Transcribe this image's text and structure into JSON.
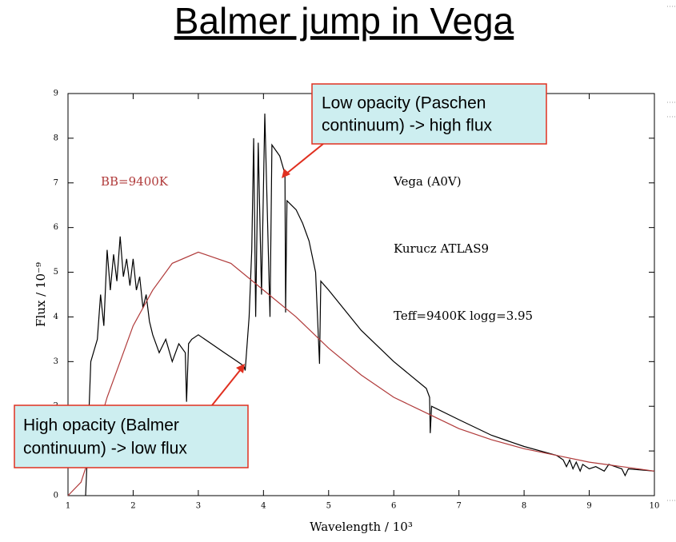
{
  "chart_data": {
    "type": "line",
    "title": "Balmer jump in Vega",
    "x_label": "Wavelength / 10³",
    "y_label": "Flux / 10⁻⁹",
    "xlim": [
      1,
      10
    ],
    "ylim": [
      0,
      9
    ],
    "xticks": [
      1,
      2,
      3,
      4,
      5,
      6,
      7,
      8,
      9,
      10
    ],
    "yticks": [
      0,
      1,
      2,
      3,
      4,
      5,
      6,
      7,
      8,
      9
    ],
    "grid": false,
    "series": [
      {
        "name": "Vega (A0V)",
        "color": "#000000",
        "x": [
          1.27,
          1.3,
          1.35,
          1.45,
          1.5,
          1.55,
          1.6,
          1.65,
          1.7,
          1.75,
          1.8,
          1.85,
          1.9,
          1.95,
          2.0,
          2.05,
          2.1,
          2.15,
          2.2,
          2.25,
          2.3,
          2.4,
          2.5,
          2.6,
          2.7,
          2.8,
          2.82,
          2.85,
          2.9,
          3.0,
          3.2,
          3.4,
          3.6,
          3.7,
          3.72,
          3.78,
          3.82,
          3.85,
          3.88,
          3.92,
          3.97,
          4.02,
          4.1,
          4.13,
          4.25,
          4.33,
          4.34,
          4.36,
          4.5,
          4.6,
          4.7,
          4.8,
          4.86,
          4.88,
          5.0,
          5.5,
          6.0,
          6.5,
          6.55,
          6.56,
          6.58,
          7.0,
          7.5,
          8.0,
          8.5,
          8.6,
          8.65,
          8.7,
          8.75,
          8.8,
          8.86,
          8.9,
          9.0,
          9.1,
          9.23,
          9.3,
          9.5,
          9.55,
          9.6,
          10.0
        ],
        "values": [
          0,
          1.0,
          3.0,
          3.5,
          4.5,
          3.8,
          5.5,
          4.6,
          5.4,
          4.8,
          5.8,
          4.9,
          5.3,
          4.7,
          5.3,
          4.6,
          4.9,
          4.2,
          4.5,
          3.9,
          3.6,
          3.2,
          3.5,
          3.0,
          3.4,
          3.2,
          2.1,
          3.4,
          3.5,
          3.6,
          3.4,
          3.2,
          3.0,
          2.9,
          2.8,
          4.0,
          5.5,
          8.0,
          4.0,
          7.9,
          4.5,
          8.55,
          4.0,
          7.85,
          7.6,
          7.2,
          4.1,
          6.6,
          6.4,
          6.1,
          5.7,
          5.0,
          2.95,
          4.8,
          4.6,
          3.7,
          3.0,
          2.4,
          2.2,
          1.4,
          2.0,
          1.7,
          1.35,
          1.1,
          0.9,
          0.8,
          0.65,
          0.8,
          0.6,
          0.75,
          0.55,
          0.7,
          0.6,
          0.65,
          0.55,
          0.7,
          0.6,
          0.45,
          0.6,
          0.55
        ]
      },
      {
        "name": "BB=9400K",
        "color": "#b03a3a",
        "x": [
          1.0,
          1.2,
          1.4,
          1.6,
          1.8,
          2.0,
          2.3,
          2.6,
          3.0,
          3.5,
          4.0,
          4.5,
          5.0,
          5.5,
          6.0,
          6.5,
          7.0,
          7.5,
          8.0,
          8.5,
          9.0,
          9.5,
          10.0
        ],
        "values": [
          0,
          0.3,
          1.2,
          2.2,
          3.0,
          3.8,
          4.6,
          5.2,
          5.45,
          5.2,
          4.6,
          4.0,
          3.3,
          2.7,
          2.2,
          1.85,
          1.5,
          1.25,
          1.05,
          0.9,
          0.75,
          0.65,
          0.55
        ]
      }
    ],
    "annotations": [
      "Kurucz ATLAS9",
      "Teff=9400K logg=3.95"
    ],
    "callouts": [
      {
        "lines": [
          "Low opacity (Paschen",
          "continuum) -> high flux"
        ]
      },
      {
        "lines": [
          "High opacity (Balmer",
          "continuum) -> low flux"
        ]
      }
    ]
  }
}
